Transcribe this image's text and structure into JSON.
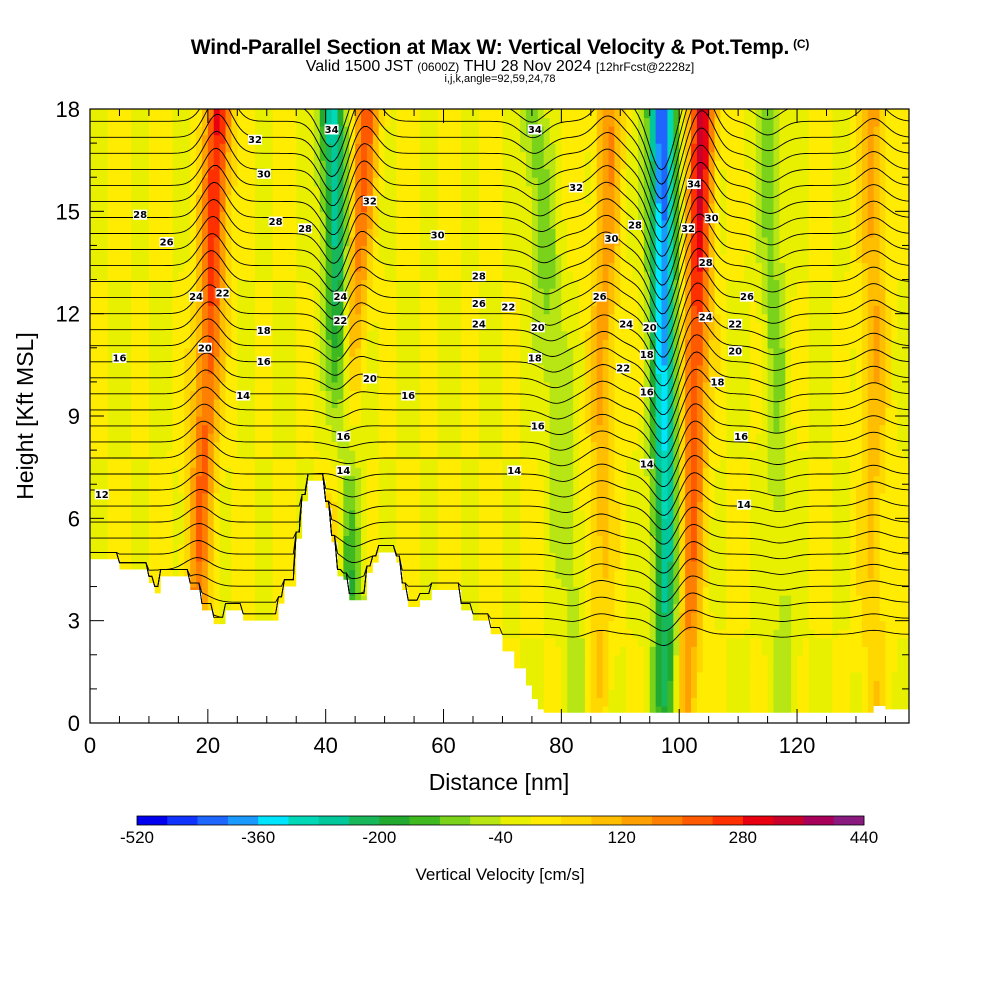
{
  "header": {
    "title": "Wind-Parallel Section at Max W: Vertical Velocity & Pot.Temp.",
    "title_badge": "(C)",
    "subtitle_valid": "Valid 1500 JST",
    "subtitle_utc": "(0600Z)",
    "subtitle_date": "THU 28 Nov 2024",
    "subtitle_forecast": "[12hrFcst@2228z]",
    "indices": "i,j,k,angle=92,59,24,78"
  },
  "chart_data": {
    "type": "heatmap",
    "xlabel": "Distance [nm]",
    "ylabel": "Height [Kft MSL]",
    "xlim": [
      0,
      139
    ],
    "ylim": [
      0,
      18
    ],
    "x_ticks": [
      "0",
      "20",
      "40",
      "60",
      "80",
      "100",
      "120"
    ],
    "y_ticks": [
      "0",
      "3",
      "6",
      "9",
      "12",
      "15",
      "18"
    ],
    "colorbar": {
      "title": "Vertical Velocity [cm/s]",
      "tick_labels": [
        "-520",
        "-360",
        "-200",
        "-40",
        "120",
        "280",
        "440"
      ],
      "min": -520,
      "max": 440,
      "step": 40,
      "colors": [
        "#0000ee",
        "#1133ff",
        "#1f66ff",
        "#1a99ff",
        "#00e5ff",
        "#00d8b8",
        "#00c89a",
        "#18b85a",
        "#22aa30",
        "#40b820",
        "#7ad21a",
        "#b8e614",
        "#e8f000",
        "#ffec00",
        "#ffd800",
        "#ffbf00",
        "#ffa000",
        "#ff8000",
        "#ff5a00",
        "#ff3000",
        "#e80010",
        "#c8002a",
        "#a8005a",
        "#881a80"
      ]
    },
    "velocity_bands": [
      {
        "center_x_at_top": 22,
        "center_x_at_bottom": 17,
        "w": 300
      },
      {
        "center_x_at_top": 41,
        "center_x_at_bottom": 45,
        "w": -300
      },
      {
        "center_x_at_top": 47,
        "center_x_at_bottom": 40,
        "w": 220
      },
      {
        "center_x_at_top": 75,
        "center_x_at_bottom": 84,
        "w": -120
      },
      {
        "center_x_at_top": 88,
        "center_x_at_bottom": 86,
        "w": 160
      },
      {
        "center_x_at_top": 97,
        "center_x_at_bottom": 98,
        "w": -460
      },
      {
        "center_x_at_top": 104,
        "center_x_at_bottom": 101,
        "w": 330
      },
      {
        "center_x_at_top": 115,
        "center_x_at_bottom": 118,
        "w": -100
      },
      {
        "center_x_at_top": 133,
        "center_x_at_bottom": 133,
        "w": 140
      }
    ],
    "terrain_kft": [
      [
        0,
        4.8
      ],
      [
        4,
        4.8
      ],
      [
        5,
        4.5
      ],
      [
        9,
        4.5
      ],
      [
        10,
        4.1
      ],
      [
        11,
        3.8
      ],
      [
        12,
        4.3
      ],
      [
        15,
        4.3
      ],
      [
        17,
        3.9
      ],
      [
        19,
        3.3
      ],
      [
        21,
        2.9
      ],
      [
        23,
        3.3
      ],
      [
        25,
        3.3
      ],
      [
        26,
        3.0
      ],
      [
        30,
        3.0
      ],
      [
        32,
        3.5
      ],
      [
        33,
        4.0
      ],
      [
        35,
        5.4
      ],
      [
        36,
        6.5
      ],
      [
        37,
        7.1
      ],
      [
        39,
        7.1
      ],
      [
        40,
        6.3
      ],
      [
        41,
        5.3
      ],
      [
        42,
        4.3
      ],
      [
        43,
        4.2
      ],
      [
        44,
        3.6
      ],
      [
        46,
        3.6
      ],
      [
        47,
        4.4
      ],
      [
        48,
        4.7
      ],
      [
        49,
        5.0
      ],
      [
        51,
        5.0
      ],
      [
        52,
        4.7
      ],
      [
        53,
        3.9
      ],
      [
        54,
        3.4
      ],
      [
        56,
        3.6
      ],
      [
        58,
        3.9
      ],
      [
        62,
        3.9
      ],
      [
        63,
        3.3
      ],
      [
        65,
        3.0
      ],
      [
        68,
        2.6
      ],
      [
        70,
        2.1
      ],
      [
        72,
        1.6
      ],
      [
        74,
        1.1
      ],
      [
        75,
        0.7
      ],
      [
        76,
        0.4
      ],
      [
        77,
        0.3
      ],
      [
        130,
        0.3
      ],
      [
        133,
        0.5
      ],
      [
        135,
        0.4
      ],
      [
        139,
        0.3
      ]
    ],
    "theta_labels": [
      {
        "text": "12",
        "x": 2,
        "y": 6.7
      },
      {
        "text": "16",
        "x": 5,
        "y": 10.7
      },
      {
        "text": "28",
        "x": 8.5,
        "y": 14.9
      },
      {
        "text": "26",
        "x": 13,
        "y": 14.1
      },
      {
        "text": "24",
        "x": 18,
        "y": 12.5
      },
      {
        "text": "22",
        "x": 22.5,
        "y": 12.6
      },
      {
        "text": "20",
        "x": 19.5,
        "y": 11.0
      },
      {
        "text": "14",
        "x": 26,
        "y": 9.6
      },
      {
        "text": "16",
        "x": 29.5,
        "y": 10.6
      },
      {
        "text": "18",
        "x": 29.5,
        "y": 11.5
      },
      {
        "text": "28",
        "x": 31.5,
        "y": 14.7
      },
      {
        "text": "30",
        "x": 29.5,
        "y": 16.1
      },
      {
        "text": "32",
        "x": 28,
        "y": 17.1
      },
      {
        "text": "28",
        "x": 36.5,
        "y": 14.5
      },
      {
        "text": "34",
        "x": 41,
        "y": 17.4
      },
      {
        "text": "32",
        "x": 47.5,
        "y": 15.3
      },
      {
        "text": "24",
        "x": 42.5,
        "y": 12.5
      },
      {
        "text": "22",
        "x": 42.5,
        "y": 11.8
      },
      {
        "text": "20",
        "x": 47.5,
        "y": 10.1
      },
      {
        "text": "16",
        "x": 43,
        "y": 8.4
      },
      {
        "text": "14",
        "x": 43,
        "y": 7.4
      },
      {
        "text": "16",
        "x": 54,
        "y": 9.6
      },
      {
        "text": "30",
        "x": 59,
        "y": 14.3
      },
      {
        "text": "28",
        "x": 66,
        "y": 13.1
      },
      {
        "text": "26",
        "x": 66,
        "y": 12.3
      },
      {
        "text": "24",
        "x": 66,
        "y": 11.7
      },
      {
        "text": "22",
        "x": 71,
        "y": 12.2
      },
      {
        "text": "20",
        "x": 76,
        "y": 11.6
      },
      {
        "text": "18",
        "x": 75.5,
        "y": 10.7
      },
      {
        "text": "16",
        "x": 76,
        "y": 8.7
      },
      {
        "text": "14",
        "x": 72,
        "y": 7.4
      },
      {
        "text": "34",
        "x": 75.5,
        "y": 17.4
      },
      {
        "text": "32",
        "x": 82.5,
        "y": 15.7
      },
      {
        "text": "30",
        "x": 88.5,
        "y": 14.2
      },
      {
        "text": "28",
        "x": 92.5,
        "y": 14.6
      },
      {
        "text": "26",
        "x": 86.5,
        "y": 12.5
      },
      {
        "text": "24",
        "x": 91,
        "y": 11.7
      },
      {
        "text": "22",
        "x": 90.5,
        "y": 10.4
      },
      {
        "text": "20",
        "x": 95,
        "y": 11.6
      },
      {
        "text": "18",
        "x": 94.5,
        "y": 10.8
      },
      {
        "text": "16",
        "x": 94.5,
        "y": 9.7
      },
      {
        "text": "14",
        "x": 94.5,
        "y": 7.6
      },
      {
        "text": "34",
        "x": 102.5,
        "y": 15.8
      },
      {
        "text": "32",
        "x": 101.5,
        "y": 14.5
      },
      {
        "text": "30",
        "x": 105.5,
        "y": 14.8
      },
      {
        "text": "28",
        "x": 104.5,
        "y": 13.5
      },
      {
        "text": "24",
        "x": 104.5,
        "y": 11.9
      },
      {
        "text": "22",
        "x": 109.5,
        "y": 11.7
      },
      {
        "text": "20",
        "x": 109.5,
        "y": 10.9
      },
      {
        "text": "18",
        "x": 106.5,
        "y": 10.0
      },
      {
        "text": "16",
        "x": 110.5,
        "y": 8.4
      },
      {
        "text": "14",
        "x": 111,
        "y": 6.4
      },
      {
        "text": "26",
        "x": 111.5,
        "y": 12.5
      }
    ]
  }
}
